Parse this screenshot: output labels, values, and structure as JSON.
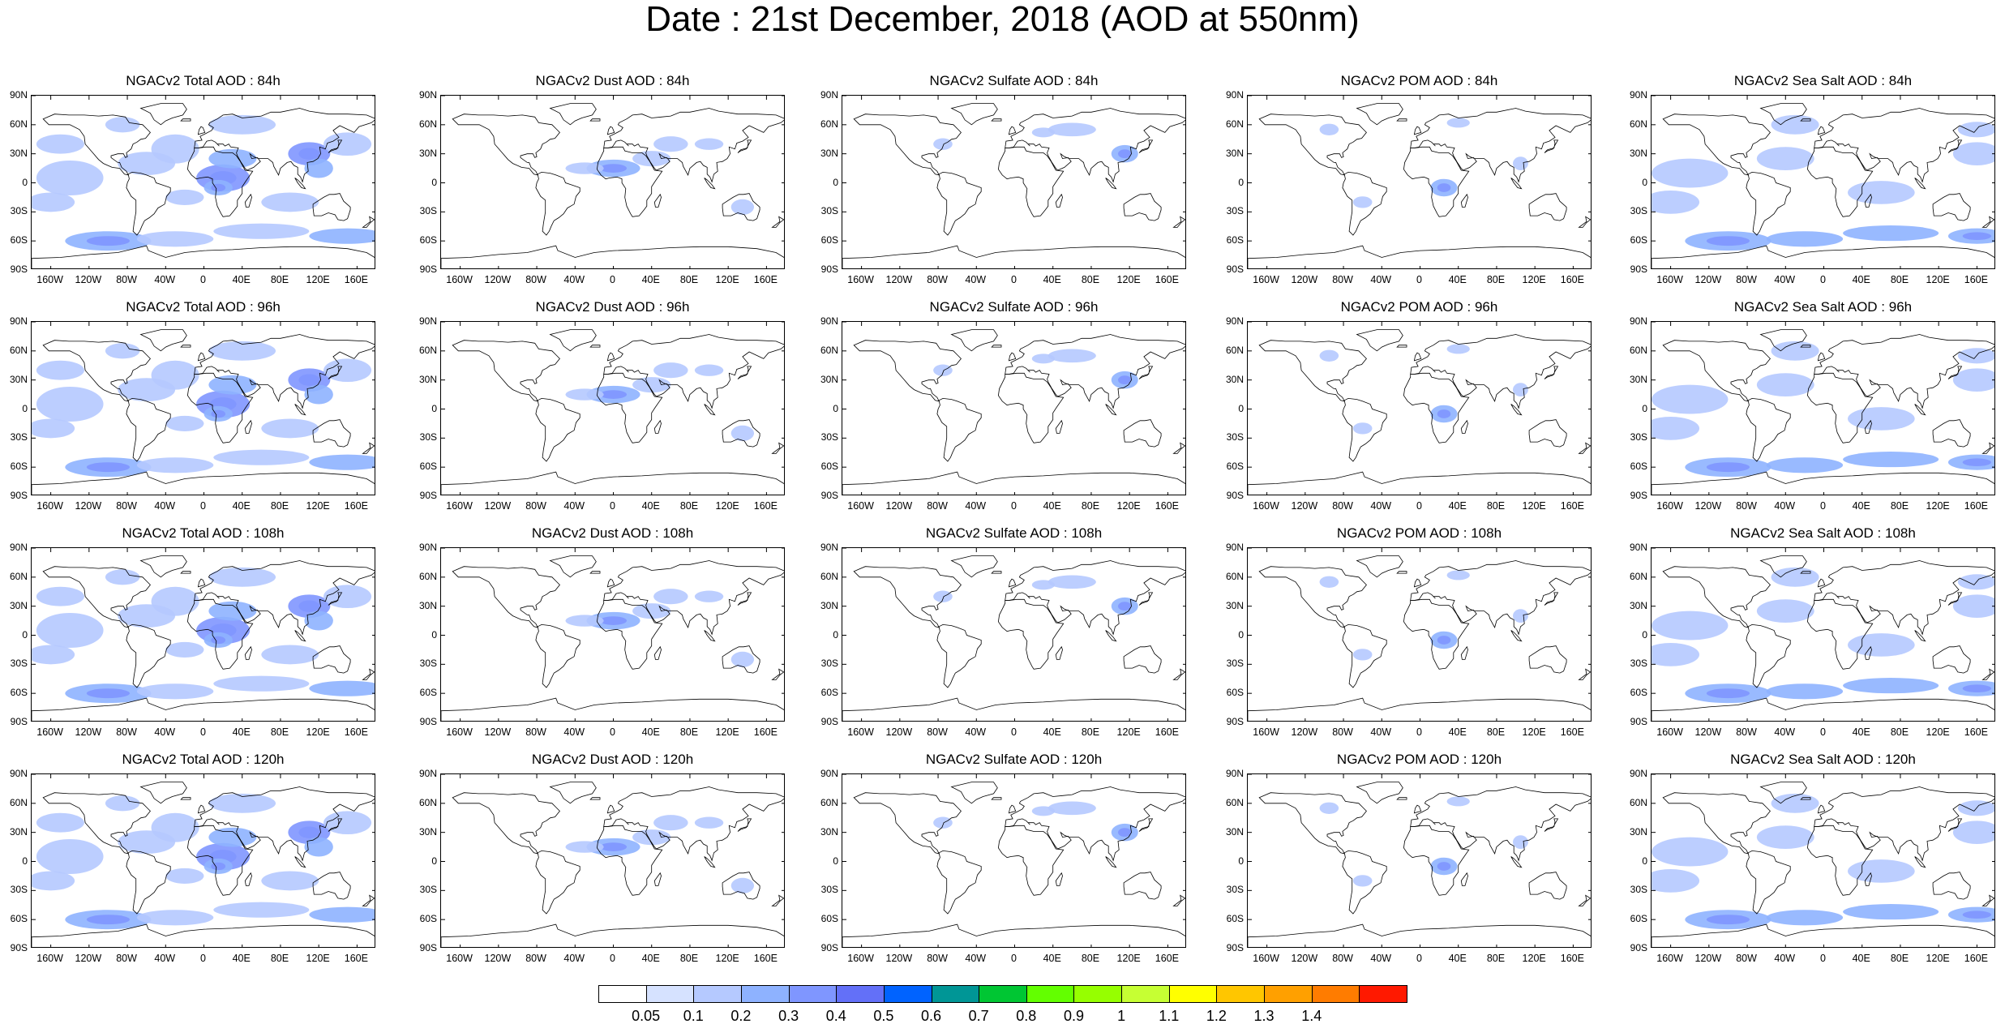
{
  "title": "Date : 21st December, 2018 (AOD at 550nm)",
  "lat_ticks": [
    "90N",
    "60N",
    "30N",
    "0",
    "30S",
    "60S",
    "90S"
  ],
  "lon_ticks": [
    "160W",
    "120W",
    "80W",
    "40W",
    "0",
    "40E",
    "80E",
    "120E",
    "160E"
  ],
  "panels": [
    [
      "NGACv2 Total AOD : 84h",
      "NGACv2 Dust AOD : 84h",
      "NGACv2 Sulfate AOD : 84h",
      "NGACv2 POM AOD : 84h",
      "NGACv2 Sea Salt AOD : 84h"
    ],
    [
      "NGACv2 Total AOD : 96h",
      "NGACv2 Dust AOD : 96h",
      "NGACv2 Sulfate AOD : 96h",
      "NGACv2 POM AOD : 96h",
      "NGACv2 Sea Salt AOD : 96h"
    ],
    [
      "NGACv2 Total AOD : 108h",
      "NGACv2 Dust AOD : 108h",
      "NGACv2 Sulfate AOD : 108h",
      "NGACv2 POM AOD : 108h",
      "NGACv2 Sea Salt AOD : 108h"
    ],
    [
      "NGACv2 Total AOD : 120h",
      "NGACv2 Dust AOD : 120h",
      "NGACv2 Sulfate AOD : 120h",
      "NGACv2 POM AOD : 120h",
      "NGACv2 Sea Salt  AOD : 120h"
    ]
  ],
  "colorbar": {
    "labels": [
      "0.05",
      "0.1",
      "0.2",
      "0.3",
      "0.4",
      "0.5",
      "0.6",
      "0.7",
      "0.8",
      "0.9",
      "1",
      "1.1",
      "1.2",
      "1.3",
      "1.4"
    ],
    "colors": [
      "#ffffff",
      "#d6e2ff",
      "#b5c9ff",
      "#8eb2ff",
      "#7f96ff",
      "#6370f8",
      "#0063ff",
      "#009696",
      "#00c633",
      "#63ff00",
      "#96ff00",
      "#c6ff33",
      "#ffff00",
      "#ffc600",
      "#ffa000",
      "#ff7c00",
      "#ff1900"
    ]
  },
  "style": {
    "land_outline": "#000000",
    "aerosol_light": "#d6e2ff",
    "aerosol_mid": "#b5c9ff",
    "aerosol_strong": "#8eb2ff",
    "aerosol_peak": "#6370f8"
  }
}
